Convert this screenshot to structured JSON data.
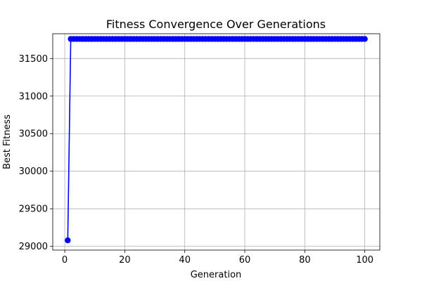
{
  "chart_data": {
    "type": "line",
    "title": "Fitness Convergence Over Generations",
    "xlabel": "Generation",
    "ylabel": "Best Fitness",
    "xlim": [
      -4,
      105
    ],
    "ylim": [
      28950,
      31830
    ],
    "grid": true,
    "xticks": [
      0,
      20,
      40,
      60,
      80,
      100
    ],
    "yticks": [
      29000,
      29500,
      30000,
      30500,
      31000,
      31500
    ],
    "series": [
      {
        "color": "#0000ff",
        "marker": "circle",
        "x_start": 1,
        "x_end": 100,
        "values_by_generation": {
          "1": 29080,
          "2-100": 31760
        }
      }
    ]
  }
}
